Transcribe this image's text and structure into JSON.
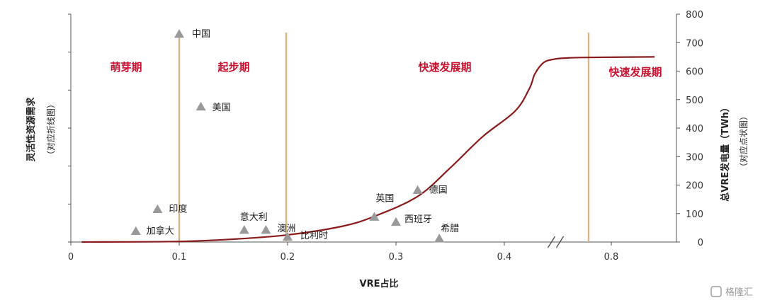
{
  "chart_data": {
    "type": "scatter",
    "xlabel": "VRE占比",
    "ylabel_left": "灵活性资源需求",
    "ylabel_left_note": "（对应折线图）",
    "ylabel_right": "总VRE发电量（TWh）",
    "ylabel_right_note": "（对应点状图）",
    "x_ticks": [
      "0",
      "0.1",
      "0.2",
      "0.3",
      "0.4",
      "0.8"
    ],
    "y_right_ticks": [
      "0",
      "100",
      "200",
      "300",
      "400",
      "500",
      "600",
      "700",
      "800"
    ],
    "xlim": [
      0,
      0.85
    ],
    "ylim_right": [
      0,
      800
    ],
    "axis_break_between": [
      0.4,
      0.8
    ],
    "stages": [
      {
        "label": "萌芽期",
        "x_from": 0,
        "x_to": 0.1
      },
      {
        "label": "起步期",
        "x_from": 0.1,
        "x_to": 0.2
      },
      {
        "label": "快速发展期",
        "x_from": 0.2,
        "x_to": 0.78
      },
      {
        "label": "快速发展期",
        "x_from": 0.78,
        "x_to": 0.85
      }
    ],
    "stage_dividers_x": [
      0.1,
      0.2,
      0.78
    ],
    "curve": {
      "color": "#8b1a1a",
      "x": [
        0.01,
        0.1,
        0.15,
        0.2,
        0.25,
        0.28,
        0.32,
        0.35,
        0.38,
        0.41,
        0.44,
        0.47,
        0.52,
        0.58,
        0.65,
        0.75,
        0.84
      ],
      "y": [
        0,
        2,
        10,
        25,
        55,
        90,
        160,
        260,
        370,
        460,
        540,
        590,
        630,
        642,
        646,
        648,
        650
      ]
    },
    "points": {
      "color": "#999999",
      "series": [
        {
          "label": "中国",
          "x": 0.1,
          "y": 730
        },
        {
          "label": "美国",
          "x": 0.12,
          "y": 475
        },
        {
          "label": "印度",
          "x": 0.08,
          "y": 115
        },
        {
          "label": "加拿大",
          "x": 0.06,
          "y": 38
        },
        {
          "label": "意大利",
          "x": 0.16,
          "y": 42
        },
        {
          "label": "澳洲",
          "x": 0.18,
          "y": 42
        },
        {
          "label": "比利时",
          "x": 0.2,
          "y": 18
        },
        {
          "label": "英国",
          "x": 0.28,
          "y": 88
        },
        {
          "label": "西班牙",
          "x": 0.3,
          "y": 70
        },
        {
          "label": "德国",
          "x": 0.32,
          "y": 182
        },
        {
          "label": "希腊",
          "x": 0.34,
          "y": 12
        }
      ]
    }
  },
  "watermark": "格隆汇"
}
